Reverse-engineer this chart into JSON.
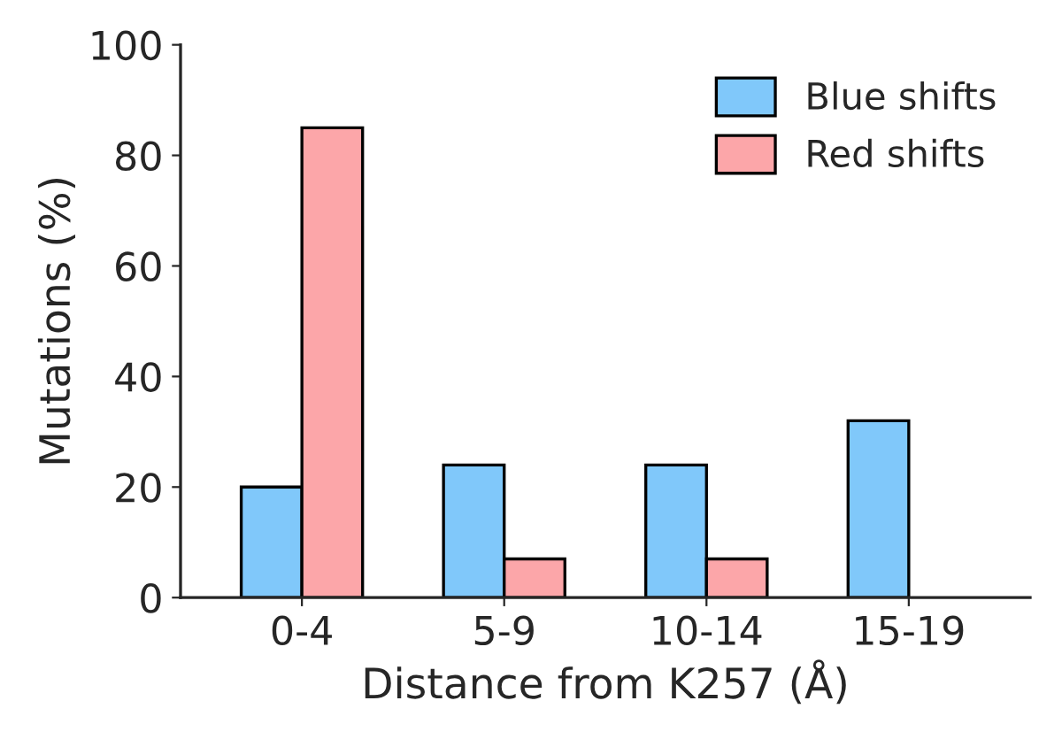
{
  "chart_data": {
    "type": "bar",
    "xlabel": "Distance from K257 (Å)",
    "ylabel": "Mutations (%)",
    "categories": [
      "0-4",
      "5-9",
      "10-14",
      "15-19"
    ],
    "series": [
      {
        "name": "Blue shifts",
        "color": "#80c8fa",
        "values": [
          20,
          24,
          24,
          32
        ]
      },
      {
        "name": "Red shifts",
        "color": "#fca6a9",
        "values": [
          85,
          7,
          7,
          null
        ]
      }
    ],
    "ylim": [
      0,
      100
    ],
    "yticks": [
      0,
      20,
      40,
      60,
      80,
      100
    ],
    "grid": false,
    "legend": "top right"
  }
}
